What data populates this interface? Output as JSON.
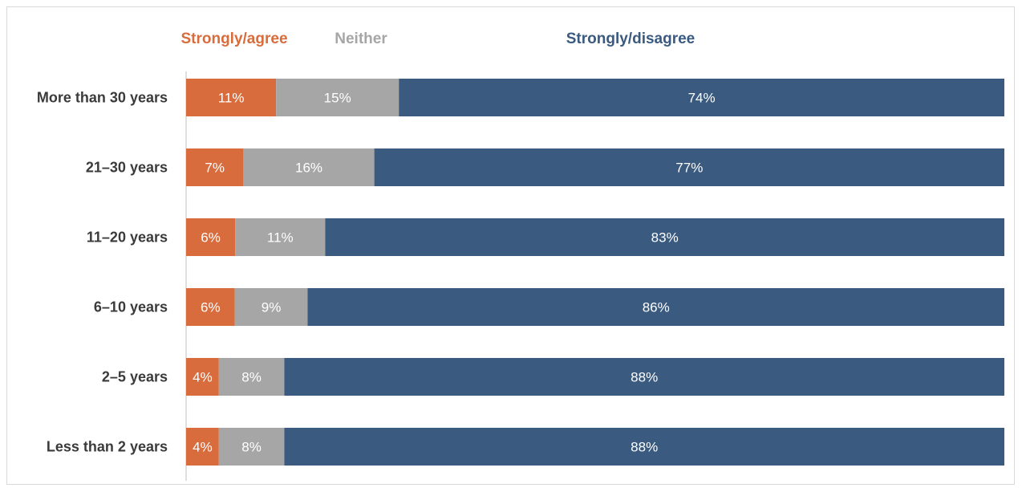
{
  "chart_data": {
    "type": "bar",
    "orientation": "horizontal",
    "stacked": true,
    "categories": [
      "More than 30 years",
      "21–30 years",
      "11–20 years",
      "6–10 years",
      "2–5 years",
      "Less than 2 years"
    ],
    "series": [
      {
        "name": "Strongly/agree",
        "color": "#d96c3c",
        "values": [
          11,
          7,
          6,
          6,
          4,
          4
        ],
        "labels": [
          "11%",
          "7%",
          "6%",
          "6%",
          "4%",
          "4%"
        ]
      },
      {
        "name": "Neither",
        "color": "#a6a6a6",
        "values": [
          15,
          16,
          11,
          9,
          8,
          8
        ],
        "labels": [
          "15%",
          "16%",
          "11%",
          "9%",
          "8%",
          "8%"
        ]
      },
      {
        "name": "Strongly/disagree",
        "color": "#3a5a80",
        "values": [
          74,
          77,
          83,
          86,
          88,
          88
        ],
        "labels": [
          "74%",
          "77%",
          "83%",
          "86%",
          "88%",
          "88%"
        ]
      }
    ],
    "xlim": [
      0,
      100
    ],
    "grid": false,
    "legend_position": "top"
  }
}
